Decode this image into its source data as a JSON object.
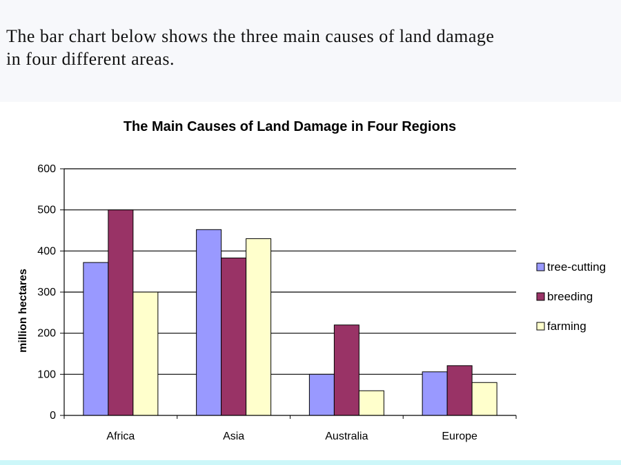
{
  "intro": {
    "line1": "The bar chart below shows the three main causes of land damage",
    "line2": "in four different areas."
  },
  "colors": {
    "tree_cutting": "#9999ff",
    "breeding": "#993366",
    "farming": "#ffffcc"
  },
  "chart_data": {
    "type": "bar",
    "title": "The Main Causes of Land Damage in Four Regions",
    "ylabel": "million hectares",
    "xlabel": "",
    "categories": [
      "Africa",
      "Asia",
      "Australia",
      "Europe"
    ],
    "series": [
      {
        "name": "tree-cutting",
        "values": [
          372,
          452,
          100,
          106
        ]
      },
      {
        "name": "breeding",
        "values": [
          500,
          383,
          220,
          121
        ]
      },
      {
        "name": "farming",
        "values": [
          300,
          430,
          60,
          80
        ]
      }
    ],
    "ylim": [
      0,
      600
    ],
    "yticks": [
      "0",
      "100",
      "200",
      "300",
      "400",
      "500",
      "600"
    ],
    "grid": true,
    "legend": "right"
  }
}
